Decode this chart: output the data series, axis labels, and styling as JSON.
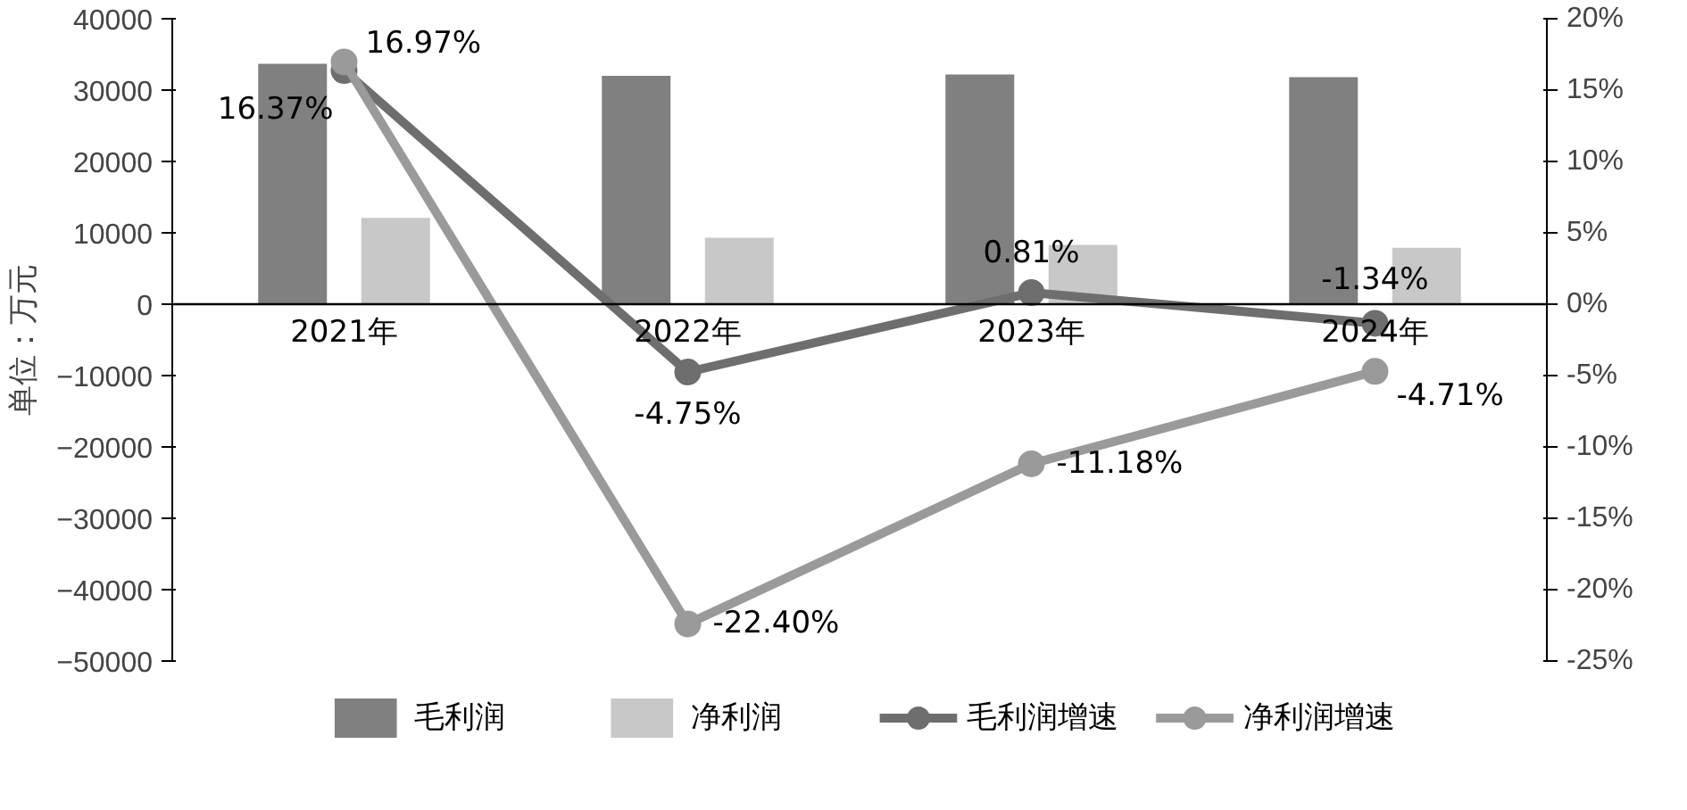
{
  "chart_data": {
    "type": "bar",
    "ylabel": "单位：万元",
    "categories": [
      "2021年",
      "2022年",
      "2023年",
      "2024年"
    ],
    "ylim": [
      -50000,
      40000
    ],
    "yticks": [
      -50000,
      -40000,
      -30000,
      -20000,
      -10000,
      0,
      10000,
      20000,
      30000,
      40000
    ],
    "y2lim": [
      -25,
      20
    ],
    "y2ticks": [
      {
        "value": -25,
        "label": "-25%"
      },
      {
        "value": -20,
        "label": "-20%"
      },
      {
        "value": -15,
        "label": "-15%"
      },
      {
        "value": -10,
        "label": "-10%"
      },
      {
        "value": -5,
        "label": "-5%"
      },
      {
        "value": 0,
        "label": "0%"
      },
      {
        "value": 5,
        "label": "5%"
      },
      {
        "value": 10,
        "label": "10%"
      },
      {
        "value": 15,
        "label": "15%"
      },
      {
        "value": 20,
        "label": "20%"
      }
    ],
    "series": [
      {
        "name": "毛利润",
        "color": "#808080",
        "values": [
          33700,
          32000,
          32200,
          31800
        ]
      },
      {
        "name": "净利润",
        "color": "#c8c8c8",
        "values": [
          12100,
          9300,
          8300,
          7900
        ]
      },
      {
        "name": "毛利润增速",
        "type": "line",
        "axis": "y2",
        "color": "#6e6e6e",
        "marker": "circle",
        "values": [
          16.37,
          -4.75,
          0.81,
          -1.34
        ],
        "value_labels": [
          "16.37%",
          "-4.75%",
          "0.81%",
          "-1.34%"
        ]
      },
      {
        "name": "净利润增速",
        "type": "line",
        "axis": "y2",
        "color": "#9a9a9a",
        "marker": "circle",
        "values": [
          16.97,
          -22.4,
          -11.18,
          -4.71
        ],
        "value_labels": [
          "16.97%",
          "-22.40%",
          "-11.18%",
          "-4.71%"
        ]
      }
    ],
    "grid": false,
    "legend": "bottom"
  }
}
